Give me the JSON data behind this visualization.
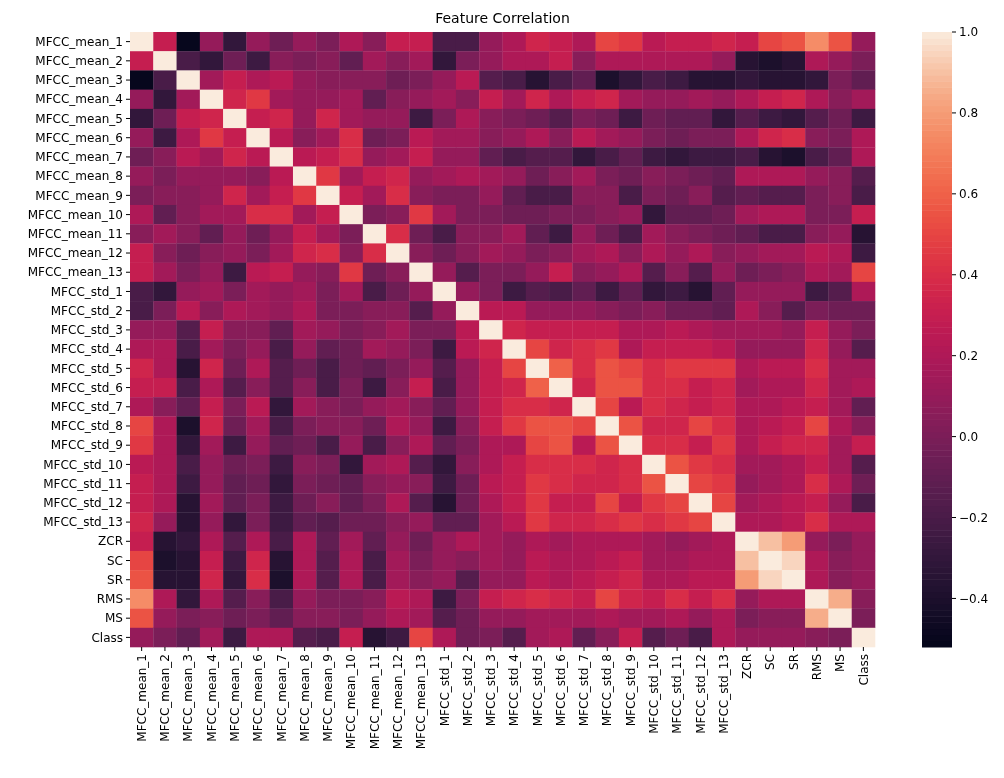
{
  "chart_data": {
    "type": "heatmap",
    "title": "Feature Correlation",
    "categories": [
      "MFCC_mean_1",
      "MFCC_mean_2",
      "MFCC_mean_3",
      "MFCC_mean_4",
      "MFCC_mean_5",
      "MFCC_mean_6",
      "MFCC_mean_7",
      "MFCC_mean_8",
      "MFCC_mean_9",
      "MFCC_mean_10",
      "MFCC_mean_11",
      "MFCC_mean_12",
      "MFCC_mean_13",
      "MFCC_std_1",
      "MFCC_std_2",
      "MFCC_std_3",
      "MFCC_std_4",
      "MFCC_std_5",
      "MFCC_std_6",
      "MFCC_std_7",
      "MFCC_std_8",
      "MFCC_std_9",
      "MFCC_std_10",
      "MFCC_std_11",
      "MFCC_std_12",
      "MFCC_std_13",
      "ZCR",
      "SC",
      "SR",
      "RMS",
      "MS",
      "Class"
    ],
    "y_categories": [
      "MFCC_mean_1",
      "MFCC_mean_2",
      "MFCC_mean_3",
      "MFCC_mean_4",
      "MFCC_mean_5",
      "MFCC_mean_6",
      "MFCC_mean_7",
      "MFCC_mean_8",
      "MFCC_mean_9",
      "MFCC_mean_10",
      "MFCC_mean_11",
      "MFCC_mean_12",
      "MFCC_mean_13",
      "MFCC_std_1",
      "MFCC_std_2",
      "MFCC_std_3",
      "MFCC_std_4",
      "MFCC_std_5",
      "MFCC_std_6",
      "MFCC_std_7",
      "MFCC_std_8",
      "MFCC_std_9",
      "MFCC_std_10",
      "MFCC_std_11",
      "MFCC_std_12",
      "MFCC_std_13",
      "ZCR",
      "SC",
      "SR",
      "RMS",
      "MS",
      "Class"
    ],
    "cells": [
      [
        1,
        0.3,
        -0.5,
        0.1,
        -0.3,
        0.1,
        -0.05,
        0.1,
        0,
        0.2,
        0.05,
        0.3,
        0.3,
        -0.2,
        -0.2,
        0.1,
        0.2,
        0.35,
        0.3,
        0.2,
        0.5,
        0.45,
        0.25,
        0.3,
        0.3,
        0.35,
        0.3,
        0.5,
        0.55,
        0.75,
        0.55,
        0.1
      ],
      [
        0.3,
        1,
        -0.2,
        -0.3,
        -0.05,
        -0.25,
        0.05,
        0,
        0.05,
        -0.1,
        0.15,
        0.05,
        0.15,
        -0.3,
        0,
        0.1,
        0.2,
        0.2,
        0.3,
        0.05,
        0.2,
        0.2,
        0.2,
        0.2,
        0.2,
        0.1,
        -0.35,
        -0.4,
        -0.35,
        0.2,
        0.1,
        0
      ],
      [
        -0.5,
        -0.2,
        1,
        0.15,
        0.3,
        0.2,
        0.25,
        0.1,
        0.05,
        0.05,
        0.05,
        -0.05,
        0,
        0.1,
        0.25,
        -0.15,
        -0.2,
        -0.35,
        -0.2,
        -0.1,
        -0.4,
        -0.3,
        -0.2,
        -0.25,
        -0.35,
        -0.35,
        -0.3,
        -0.35,
        -0.35,
        -0.3,
        0,
        -0.1
      ],
      [
        0.1,
        -0.3,
        0.15,
        1,
        0.35,
        0.45,
        0.15,
        0.1,
        0.1,
        0.15,
        -0.1,
        0.05,
        0.1,
        0.15,
        0.05,
        0.3,
        0.15,
        0.35,
        0.2,
        0.3,
        0.35,
        0.15,
        0.1,
        0.1,
        0.15,
        0.1,
        0.2,
        0.3,
        0.35,
        0.2,
        0.05,
        0.15
      ],
      [
        -0.3,
        -0.05,
        0.3,
        0.35,
        1,
        0.3,
        0.35,
        0.1,
        0.35,
        0.15,
        0.1,
        0.1,
        -0.25,
        0,
        0.2,
        0.05,
        0,
        -0.05,
        -0.15,
        0,
        -0.05,
        -0.25,
        -0.05,
        -0.1,
        -0.1,
        -0.3,
        -0.15,
        -0.25,
        -0.3,
        -0.15,
        -0.05,
        -0.25
      ],
      [
        0.1,
        -0.25,
        0.2,
        0.45,
        0.3,
        1,
        0.25,
        0.05,
        0.15,
        0.4,
        -0.05,
        0,
        0.25,
        0.15,
        0.15,
        0.05,
        0.1,
        0.2,
        0.05,
        0.25,
        0.15,
        0.1,
        0,
        -0.05,
        0,
        0,
        0.2,
        0.35,
        0.4,
        0.05,
        0,
        0.2
      ],
      [
        -0.05,
        0.05,
        0.25,
        0.15,
        0.35,
        0.25,
        1,
        0.25,
        0.3,
        0.4,
        0.1,
        0.15,
        0.3,
        0.1,
        0.1,
        -0.1,
        -0.2,
        -0.15,
        -0.15,
        -0.3,
        -0.2,
        -0.1,
        -0.25,
        -0.3,
        -0.25,
        -0.25,
        -0.2,
        -0.35,
        -0.4,
        -0.2,
        -0.1,
        0.2
      ],
      [
        0.1,
        0,
        0.1,
        0.1,
        0.1,
        0.05,
        0.25,
        1,
        0.45,
        0.15,
        0.3,
        0.35,
        0.1,
        0.15,
        0.2,
        0.15,
        0.1,
        -0.05,
        0.05,
        0.15,
        0,
        -0.05,
        0.05,
        0,
        -0.05,
        -0.1,
        0.2,
        0.2,
        0.2,
        0.1,
        0.05,
        -0.15
      ],
      [
        0,
        0.05,
        0.05,
        0.1,
        0.35,
        0.15,
        0.3,
        0.45,
        1,
        0.3,
        0.15,
        0.4,
        0.05,
        0,
        0,
        0.1,
        -0.1,
        -0.2,
        -0.2,
        0.05,
        0.05,
        -0.2,
        0,
        -0.05,
        0.05,
        -0.15,
        -0.1,
        -0.15,
        -0.15,
        0,
        0.05,
        -0.2
      ],
      [
        0.2,
        -0.1,
        0.05,
        0.15,
        0.15,
        0.4,
        0.4,
        0.15,
        0.3,
        1,
        0,
        0.05,
        0.45,
        0.15,
        0,
        0,
        -0.05,
        -0.05,
        0,
        0,
        0.05,
        0.1,
        -0.3,
        -0.1,
        -0.1,
        -0.05,
        0.15,
        0.2,
        0.2,
        0,
        0,
        0.3
      ],
      [
        0.05,
        0.15,
        0.05,
        -0.1,
        0.1,
        -0.05,
        0.1,
        0.3,
        0.15,
        0,
        1,
        0.4,
        -0.05,
        -0.2,
        0.05,
        0.05,
        0.15,
        -0.1,
        -0.25,
        0.1,
        -0.05,
        -0.2,
        0.15,
        0.05,
        0,
        -0.05,
        -0.1,
        -0.2,
        -0.2,
        0.05,
        0.1,
        -0.35
      ],
      [
        0.3,
        0.05,
        -0.05,
        0.05,
        0.1,
        0,
        0.15,
        0.35,
        0.4,
        0.05,
        0.4,
        1,
        0.05,
        -0.05,
        0.05,
        0.15,
        0.1,
        0,
        0.05,
        0.15,
        0.2,
        0.05,
        0.2,
        0.1,
        0.2,
        0.05,
        0.1,
        0.15,
        0.15,
        0.25,
        0.2,
        -0.25
      ],
      [
        0.3,
        0.15,
        0,
        0.1,
        -0.25,
        0.25,
        0.3,
        0.1,
        0.05,
        0.45,
        -0.05,
        0.05,
        1,
        0.1,
        -0.15,
        0,
        0,
        0.1,
        0.3,
        0.05,
        0.1,
        0.2,
        -0.15,
        0.05,
        -0.15,
        0.1,
        -0.05,
        0,
        0.05,
        0.2,
        0.15,
        0.5
      ],
      [
        -0.2,
        -0.3,
        0.1,
        0.15,
        0,
        0.15,
        0.1,
        0.15,
        0,
        0.15,
        -0.2,
        -0.05,
        0.1,
        1,
        0.1,
        0,
        -0.25,
        -0.15,
        -0.2,
        -0.1,
        -0.25,
        -0.1,
        -0.3,
        -0.25,
        -0.35,
        -0.1,
        0.1,
        0.1,
        0.1,
        -0.25,
        -0.15,
        0.2
      ],
      [
        -0.2,
        0,
        0.25,
        0.05,
        0.2,
        0.15,
        0.1,
        0.2,
        0,
        0,
        0.05,
        0.05,
        -0.15,
        0.1,
        1,
        0.25,
        0.25,
        0.1,
        0.1,
        0.1,
        0.05,
        0,
        0.05,
        -0.05,
        -0.05,
        -0.1,
        0.2,
        0.05,
        -0.15,
        0,
        -0.05,
        -0.05
      ],
      [
        0.1,
        0.1,
        -0.15,
        0.3,
        0.05,
        0.05,
        -0.1,
        0.15,
        0.1,
        0,
        0.05,
        0.15,
        0,
        0,
        0.25,
        1,
        0.35,
        0.3,
        0.3,
        0.3,
        0.3,
        0.2,
        0.2,
        0.25,
        0.2,
        0.15,
        0.15,
        0.15,
        0.1,
        0.3,
        0.1,
        0
      ],
      [
        0.2,
        0.2,
        -0.2,
        0.15,
        0,
        0.1,
        -0.2,
        0.1,
        -0.1,
        -0.05,
        0.15,
        0.1,
        0,
        -0.25,
        0.25,
        0.35,
        1,
        0.5,
        0.35,
        0.4,
        0.45,
        0.2,
        0.3,
        0.3,
        0.3,
        0.25,
        0.1,
        0.1,
        0.1,
        0.35,
        0.1,
        -0.15
      ],
      [
        0.35,
        0.2,
        -0.35,
        0.35,
        -0.05,
        0.2,
        -0.15,
        -0.05,
        -0.2,
        -0.05,
        -0.1,
        0,
        0.1,
        -0.15,
        0.1,
        0.3,
        0.5,
        1,
        0.6,
        0.4,
        0.55,
        0.5,
        0.4,
        0.45,
        0.45,
        0.45,
        0.2,
        0.25,
        0.25,
        0.4,
        0.15,
        0.15
      ],
      [
        0.3,
        0.3,
        -0.2,
        0.2,
        -0.15,
        0.05,
        -0.15,
        0.05,
        -0.2,
        0,
        -0.25,
        0.05,
        0.3,
        -0.2,
        0.1,
        0.3,
        0.35,
        0.6,
        1,
        0.35,
        0.55,
        0.55,
        0.4,
        0.4,
        0.3,
        0.35,
        0.15,
        0.2,
        0.2,
        0.35,
        0.15,
        0.2
      ],
      [
        0.2,
        0.05,
        -0.1,
        0.3,
        0,
        0.25,
        -0.3,
        0.15,
        0.05,
        0,
        0.1,
        0.15,
        0.05,
        -0.1,
        0.1,
        0.3,
        0.4,
        0.4,
        0.35,
        1,
        0.5,
        0.25,
        0.4,
        0.35,
        0.3,
        0.35,
        0.2,
        0.2,
        0.25,
        0.3,
        0.15,
        -0.1
      ],
      [
        0.5,
        0.2,
        -0.4,
        0.35,
        -0.05,
        0.15,
        -0.2,
        0,
        0.05,
        0.05,
        -0.05,
        0.2,
        0.1,
        -0.25,
        0.05,
        0.3,
        0.45,
        0.55,
        0.55,
        0.5,
        1,
        0.55,
        0.35,
        0.35,
        0.5,
        0.4,
        0.2,
        0.25,
        0.3,
        0.5,
        0.2,
        0.05
      ],
      [
        0.45,
        0.2,
        -0.3,
        0.15,
        -0.25,
        0.1,
        -0.1,
        -0.05,
        -0.2,
        0.1,
        -0.2,
        0.05,
        0.2,
        -0.1,
        0,
        0.2,
        0.2,
        0.5,
        0.55,
        0.25,
        0.55,
        1,
        0.4,
        0.4,
        0.3,
        0.45,
        0.2,
        0.3,
        0.35,
        0.35,
        0.15,
        0.3
      ],
      [
        0.25,
        0.2,
        -0.2,
        0.1,
        -0.05,
        0,
        -0.25,
        0.05,
        0,
        -0.3,
        0.15,
        0.2,
        -0.15,
        -0.3,
        0.05,
        0.2,
        0.3,
        0.4,
        0.4,
        0.4,
        0.35,
        0.4,
        1,
        0.55,
        0.45,
        0.4,
        0.15,
        0.15,
        0.2,
        0.3,
        0.15,
        -0.15
      ],
      [
        0.3,
        0.2,
        -0.25,
        0.1,
        -0.1,
        -0.05,
        -0.3,
        0,
        -0.05,
        -0.1,
        0.05,
        0.1,
        0.05,
        -0.25,
        -0.05,
        0.25,
        0.3,
        0.45,
        0.4,
        0.35,
        0.35,
        0.4,
        0.55,
        1,
        0.5,
        0.45,
        0.1,
        0.15,
        0.2,
        0.4,
        0.2,
        -0.05
      ],
      [
        0.3,
        0.2,
        -0.35,
        0.15,
        -0.1,
        0,
        -0.25,
        -0.05,
        0.05,
        -0.1,
        0,
        0.2,
        -0.15,
        -0.35,
        -0.05,
        0.2,
        0.3,
        0.45,
        0.3,
        0.3,
        0.5,
        0.3,
        0.45,
        0.5,
        1,
        0.5,
        0.15,
        0.2,
        0.25,
        0.3,
        0.1,
        -0.2
      ],
      [
        0.35,
        0.1,
        -0.35,
        0.1,
        -0.3,
        0,
        -0.25,
        -0.1,
        -0.15,
        -0.05,
        -0.05,
        0.05,
        0.1,
        -0.1,
        -0.1,
        0.15,
        0.25,
        0.45,
        0.35,
        0.35,
        0.4,
        0.45,
        0.4,
        0.45,
        0.5,
        1,
        0.2,
        0.2,
        0.25,
        0.4,
        0.2,
        0.2
      ],
      [
        0.3,
        -0.35,
        -0.3,
        0.2,
        -0.15,
        0.2,
        -0.2,
        0.2,
        -0.1,
        0.15,
        -0.1,
        0.1,
        -0.05,
        0.1,
        0.2,
        0.15,
        0.1,
        0.2,
        0.15,
        0.2,
        0.2,
        0.2,
        0.15,
        0.1,
        0.15,
        0.2,
        1,
        0.9,
        0.8,
        0.1,
        0,
        0.1
      ],
      [
        0.5,
        -0.4,
        -0.35,
        0.3,
        -0.25,
        0.35,
        -0.35,
        0.2,
        -0.15,
        0.2,
        -0.2,
        0.15,
        0,
        0.1,
        0.05,
        0.15,
        0.1,
        0.25,
        0.2,
        0.2,
        0.25,
        0.3,
        0.15,
        0.15,
        0.2,
        0.2,
        0.9,
        1,
        0.95,
        0.2,
        0.05,
        0.1
      ],
      [
        0.55,
        -0.35,
        -0.35,
        0.35,
        -0.3,
        0.4,
        -0.4,
        0.2,
        -0.15,
        0.2,
        -0.2,
        0.15,
        0.05,
        0.1,
        -0.15,
        0.1,
        0.1,
        0.25,
        0.2,
        0.25,
        0.3,
        0.35,
        0.2,
        0.2,
        0.25,
        0.25,
        0.8,
        0.95,
        1,
        0.2,
        0.05,
        0.1
      ],
      [
        0.75,
        0.2,
        -0.3,
        0.2,
        -0.15,
        0.05,
        -0.2,
        0.1,
        0,
        0,
        0.05,
        0.25,
        0.2,
        -0.25,
        0,
        0.3,
        0.35,
        0.4,
        0.35,
        0.3,
        0.5,
        0.35,
        0.3,
        0.4,
        0.3,
        0.4,
        0.1,
        0.2,
        0.2,
        1,
        0.85,
        0.05
      ],
      [
        0.55,
        0.1,
        0,
        0.05,
        -0.05,
        0,
        -0.1,
        0.05,
        0.05,
        0,
        0.1,
        0.2,
        0.15,
        -0.15,
        -0.05,
        0.1,
        0.1,
        0.15,
        0.15,
        0.15,
        0.2,
        0.15,
        0.15,
        0.2,
        0.1,
        0.2,
        0,
        0.05,
        0.05,
        0.85,
        1,
        0
      ],
      [
        0.1,
        0,
        -0.1,
        0.15,
        -0.25,
        0.2,
        0.2,
        -0.15,
        -0.2,
        0.3,
        -0.35,
        -0.25,
        0.5,
        0.2,
        -0.05,
        0,
        -0.15,
        0.15,
        0.2,
        -0.1,
        0.05,
        0.3,
        -0.15,
        -0.05,
        -0.2,
        0.2,
        0.1,
        0.1,
        0.1,
        0.05,
        0,
        1
      ]
    ],
    "clim": [
      -0.52,
      1.0
    ],
    "cticks": [
      {
        "value": -0.4,
        "label": "−0.4"
      },
      {
        "value": -0.2,
        "label": "−0.2"
      },
      {
        "value": 0,
        "label": "0.0"
      },
      {
        "value": 0.2,
        "label": "0.2"
      },
      {
        "value": 0.4,
        "label": "0.4"
      },
      {
        "value": 0.6,
        "label": "0.6"
      },
      {
        "value": 0.8,
        "label": "0.8"
      },
      {
        "value": 1.0,
        "label": "1.0"
      }
    ]
  }
}
